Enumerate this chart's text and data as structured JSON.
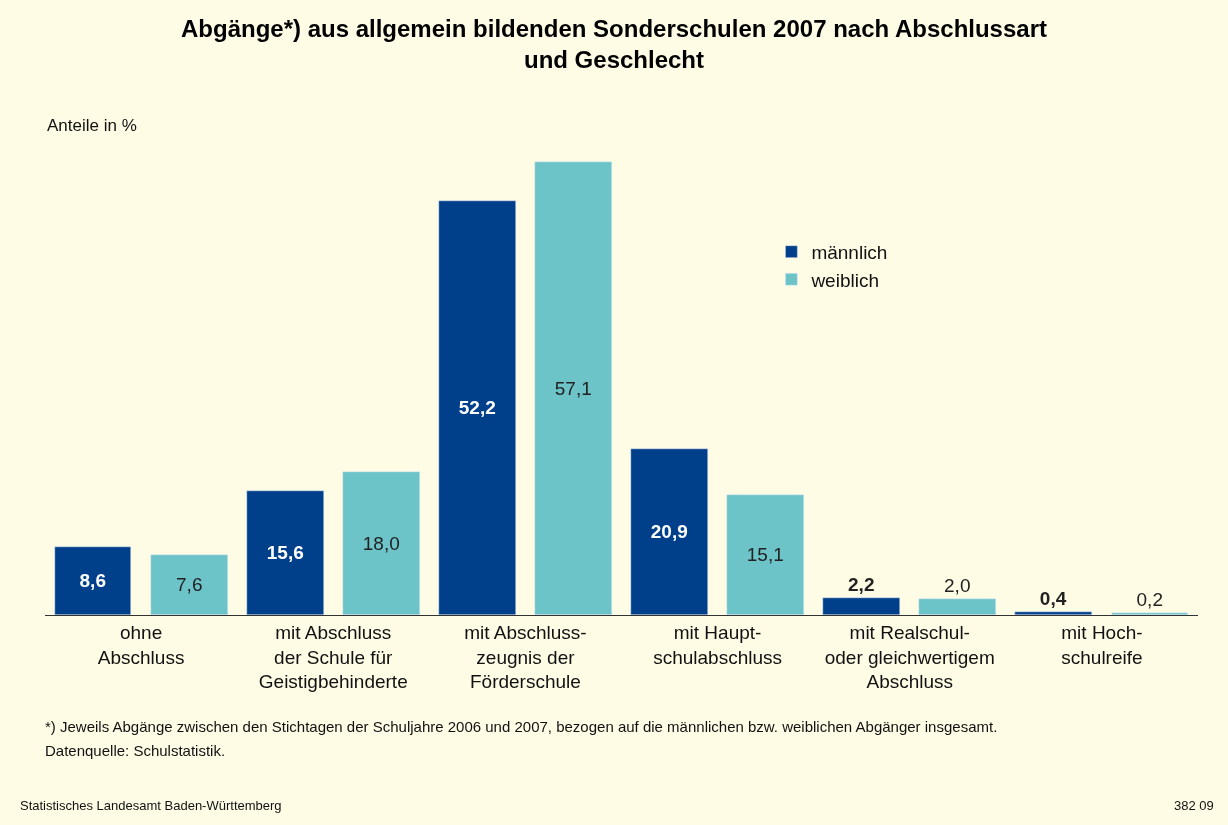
{
  "chart_data": {
    "type": "bar",
    "title": "Abgänge*) aus allgemein bildenden Sonderschulen 2007 nach Abschlussart\nund Geschlecht",
    "ylabel": "Anteile in %",
    "categories": [
      "ohne\nAbschluss",
      "mit Abschluss\nder Schule für\nGeistigbehinderte",
      "mit Abschluss-\nzeugnis der\nFörderschule",
      "mit Haupt-\nschulabschluss",
      "mit Realschul-\noder gleichwertigem\nAbschluss",
      "mit Hoch-\nschulreife"
    ],
    "series": [
      {
        "name": "männlich",
        "color": "#003f8a",
        "values": [
          8.6,
          15.6,
          52.2,
          20.9,
          2.2,
          0.4
        ],
        "value_labels": [
          "8,6",
          "15,6",
          "52,2",
          "20,9",
          "2,2",
          "0,4"
        ]
      },
      {
        "name": "weiblich",
        "color": "#6cc3c8",
        "values": [
          7.6,
          18.0,
          57.1,
          15.1,
          2.0,
          0.2
        ],
        "value_labels": [
          "7,6",
          "18,0",
          "57,1",
          "15,1",
          "2,0",
          "0,2"
        ]
      }
    ],
    "legend": "top right",
    "grid": false,
    "annotations": [
      "*) Jeweils Abgänge zwischen den Stichtagen der Schuljahre 2006 und 2007, bezogen auf die männlichen bzw. weiblichen Abgänger insgesamt.",
      "Datenquelle: Schulstatistik.",
      "Statistisches Landesamt Baden-Württemberg",
      "382 09"
    ]
  }
}
